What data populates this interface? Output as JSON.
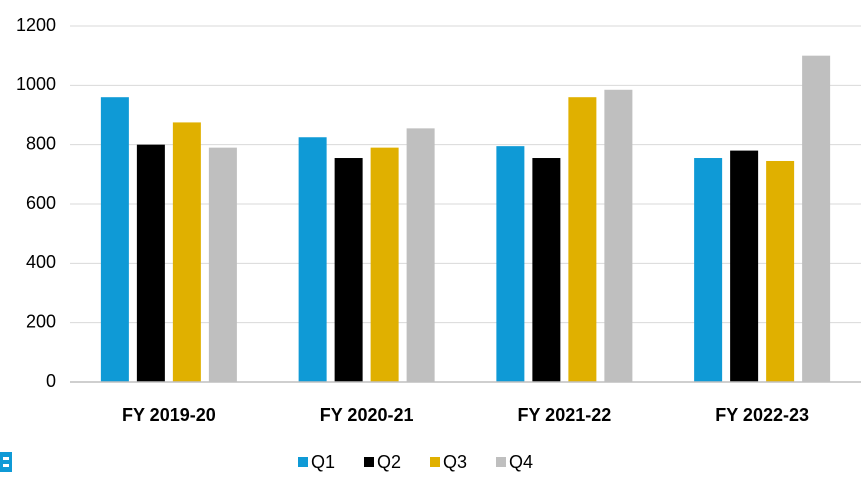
{
  "chart_data": {
    "type": "bar",
    "categories": [
      "FY 2019-20",
      "FY 2020-21",
      "FY 2021-22",
      "FY 2022-23"
    ],
    "series": [
      {
        "name": "Q1",
        "color": "#0f9ad6",
        "values": [
          960,
          825,
          795,
          755
        ]
      },
      {
        "name": "Q2",
        "color": "#000000",
        "values": [
          800,
          755,
          755,
          780
        ]
      },
      {
        "name": "Q3",
        "color": "#e0b000",
        "values": [
          875,
          790,
          960,
          745
        ]
      },
      {
        "name": "Q4",
        "color": "#bfbfbf",
        "values": [
          790,
          855,
          985,
          1100
        ]
      }
    ],
    "ylim": [
      0,
      1200
    ],
    "yticks": [
      0,
      200,
      400,
      600,
      800,
      1000,
      1200
    ],
    "grid": true,
    "legend": "bottom"
  }
}
